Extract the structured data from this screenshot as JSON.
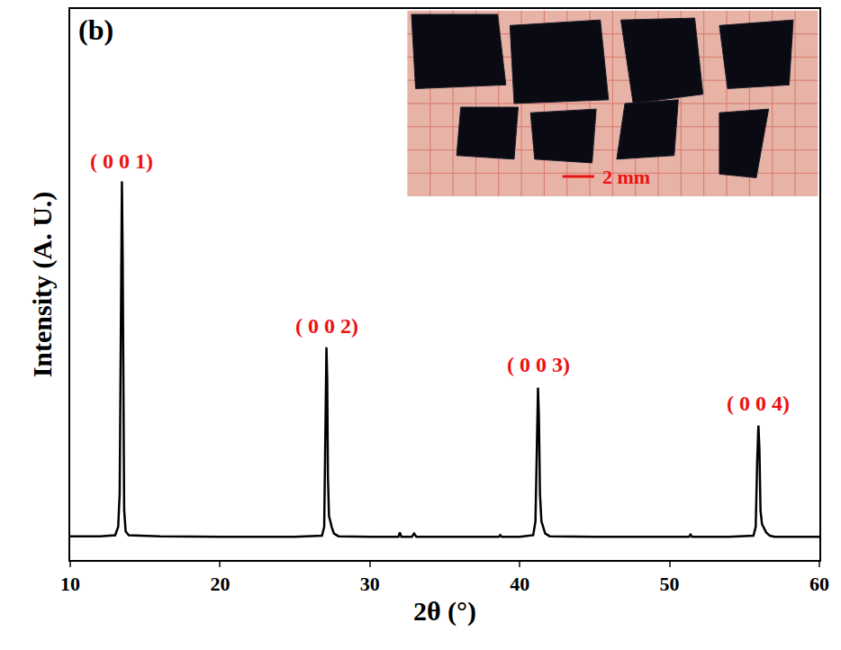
{
  "chart_data": {
    "type": "line",
    "panel_label": "(b)",
    "x_label": "2θ (°)",
    "y_label": "Intensity (A. U.)",
    "x": [
      10,
      12,
      13.0,
      13.2,
      13.3,
      13.35,
      13.4,
      13.45,
      13.5,
      13.55,
      13.6,
      13.7,
      13.9,
      16,
      20,
      25,
      26.8,
      26.95,
      27.03,
      27.1,
      27.15,
      27.2,
      27.27,
      27.35,
      27.45,
      27.6,
      27.9,
      30,
      31.9,
      32.0,
      32.1,
      32.8,
      32.95,
      33.1,
      36,
      38.6,
      38.7,
      38.8,
      40,
      40.9,
      41.05,
      41.15,
      41.22,
      41.28,
      41.35,
      41.45,
      41.55,
      41.7,
      42,
      45,
      51.3,
      51.4,
      51.5,
      54,
      55.6,
      55.75,
      55.85,
      55.93,
      56.0,
      56.07,
      56.17,
      56.3,
      56.45,
      56.7,
      57,
      60
    ],
    "values": [
      0.043,
      0.043,
      0.045,
      0.06,
      0.12,
      0.3,
      0.6,
      0.687,
      0.55,
      0.25,
      0.09,
      0.052,
      0.045,
      0.043,
      0.042,
      0.042,
      0.044,
      0.06,
      0.2,
      0.386,
      0.33,
      0.15,
      0.08,
      0.07,
      0.06,
      0.048,
      0.043,
      0.042,
      0.042,
      0.05,
      0.042,
      0.042,
      0.048,
      0.042,
      0.042,
      0.042,
      0.045,
      0.042,
      0.042,
      0.045,
      0.07,
      0.2,
      0.313,
      0.26,
      0.12,
      0.07,
      0.062,
      0.048,
      0.043,
      0.042,
      0.042,
      0.046,
      0.042,
      0.042,
      0.044,
      0.06,
      0.18,
      0.244,
      0.2,
      0.09,
      0.065,
      0.058,
      0.05,
      0.044,
      0.042,
      0.042
    ],
    "color": "#000000",
    "xlim": [
      10,
      60
    ],
    "xticks": [
      10,
      20,
      30,
      40,
      50,
      60
    ],
    "ylim": [
      0,
      1
    ],
    "tick_labels": "x",
    "grid": false,
    "annotations": [
      {
        "text": "( 0 0 1)",
        "x": 13.45,
        "y": 0.7
      },
      {
        "text": "( 0 0 2)",
        "x": 27.1,
        "y": 0.4
      },
      {
        "text": "( 0 0 3)",
        "x": 41.22,
        "y": 0.33
      },
      {
        "text": "( 0 0 4)",
        "x": 55.93,
        "y": 0.26
      }
    ],
    "inset_label": "2 mm"
  }
}
